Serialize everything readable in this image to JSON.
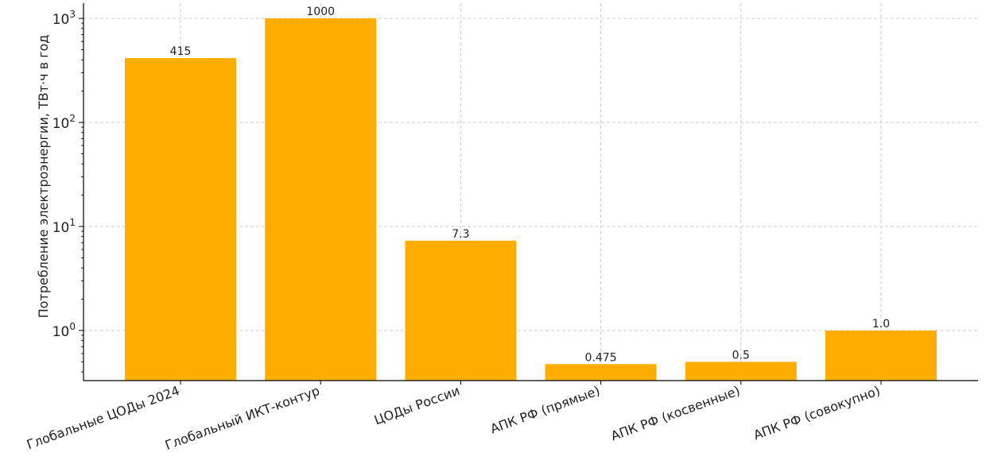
{
  "chart_data": {
    "type": "bar",
    "title": "",
    "xlabel": "",
    "ylabel": "Потребление электроэнергии, ТВт·ч в год",
    "yscale": "log",
    "ylim": [
      0.33,
      1400
    ],
    "grid": true,
    "bar_color": "#ffad00",
    "categories": [
      "Глобальные ЦОДы 2024",
      "Глобальный ИКТ-контур",
      "ЦОДы России",
      "АПК РФ (прямые)",
      "АПК РФ (косвенные)",
      "АПК РФ (совокупно)"
    ],
    "values": [
      415,
      1000,
      7.3,
      0.475,
      0.5,
      1.0
    ],
    "value_labels": [
      "415",
      "1000",
      "7.3",
      "0.475",
      "0.5",
      "1.0"
    ],
    "yticks": [
      {
        "value": 1,
        "base": "10",
        "exp": "0"
      },
      {
        "value": 10,
        "base": "10",
        "exp": "1"
      },
      {
        "value": 100,
        "base": "10",
        "exp": "2"
      },
      {
        "value": 1000,
        "base": "10",
        "exp": "3"
      }
    ]
  }
}
